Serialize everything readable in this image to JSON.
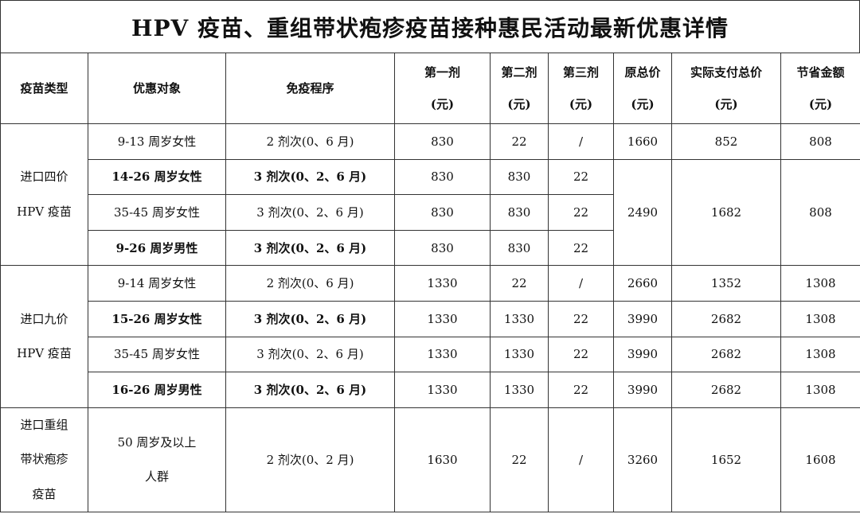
{
  "title": "HPV 疫苗、重组带状疱疹疫苗接种惠民活动最新优惠详情",
  "headers": [
    {
      "l1": "疫苗类型"
    },
    {
      "l1": "优惠对象"
    },
    {
      "l1": "免疫程序"
    },
    {
      "l1": "第一剂",
      "l2": "(元)"
    },
    {
      "l1": "第二剂",
      "l2": "(元)"
    },
    {
      "l1": "第三剂",
      "l2": "(元)"
    },
    {
      "l1": "原总价",
      "l2": "(元)"
    },
    {
      "l1": "实际支付总价",
      "l2": "(元)"
    },
    {
      "l1": "节省金额",
      "l2": "(元)"
    }
  ],
  "groups": [
    {
      "type": [
        "进口四价",
        "HPV 疫苗"
      ],
      "rows": [
        {
          "target": "9-13 周岁女性",
          "schedule": "2 剂次(0、6 月)",
          "dose1": "830",
          "dose2": "22",
          "dose3": "/",
          "original": "1660",
          "actual": "852",
          "saved": "808",
          "bold": false
        },
        {
          "target": "14-26 周岁女性",
          "schedule": "3 剂次(0、2、6 月)",
          "dose1": "830",
          "dose2": "830",
          "dose3": "22",
          "original": "2490",
          "actual": "1682",
          "saved": "808",
          "bold": true,
          "merge": 3
        },
        {
          "target": "35-45 周岁女性",
          "schedule": "3 剂次(0、2、6 月)",
          "dose1": "830",
          "dose2": "830",
          "dose3": "22",
          "bold": false
        },
        {
          "target": "9-26 周岁男性",
          "schedule": "3 剂次(0、2、6 月)",
          "dose1": "830",
          "dose2": "830",
          "dose3": "22",
          "bold": true
        }
      ]
    },
    {
      "type": [
        "进口九价",
        "HPV 疫苗"
      ],
      "rows": [
        {
          "target": "9-14 周岁女性",
          "schedule": "2 剂次(0、6 月)",
          "dose1": "1330",
          "dose2": "22",
          "dose3": "/",
          "original": "2660",
          "actual": "1352",
          "saved": "1308",
          "bold": false
        },
        {
          "target": "15-26 周岁女性",
          "schedule": "3 剂次(0、2、6 月)",
          "dose1": "1330",
          "dose2": "1330",
          "dose3": "22",
          "original": "3990",
          "actual": "2682",
          "saved": "1308",
          "bold": true
        },
        {
          "target": "35-45 周岁女性",
          "schedule": "3 剂次(0、2、6 月)",
          "dose1": "1330",
          "dose2": "1330",
          "dose3": "22",
          "original": "3990",
          "actual": "2682",
          "saved": "1308",
          "bold": false
        },
        {
          "target": "16-26 周岁男性",
          "schedule": "3 剂次(0、2、6 月)",
          "dose1": "1330",
          "dose2": "1330",
          "dose3": "22",
          "original": "3990",
          "actual": "2682",
          "saved": "1308",
          "bold": true
        }
      ]
    },
    {
      "type": [
        "进口重组",
        "带状疱疹",
        "疫苗"
      ],
      "rows": [
        {
          "target": "50 周岁及以上 人群",
          "target_lines": [
            "50 周岁及以上",
            "人群"
          ],
          "schedule": "2 剂次(0、2 月)",
          "dose1": "1630",
          "dose2": "22",
          "dose3": "/",
          "original": "3260",
          "actual": "1652",
          "saved": "1608",
          "bold": false
        }
      ]
    }
  ]
}
